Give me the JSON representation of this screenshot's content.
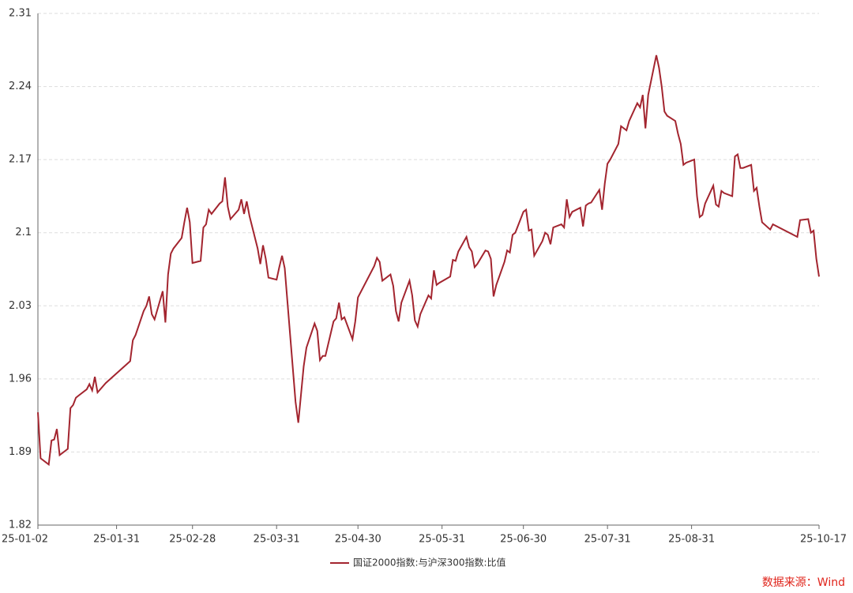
{
  "chart_data": {
    "type": "line",
    "x": [
      "25-01-02",
      "25-01-03",
      "25-01-06",
      "25-01-07",
      "25-01-08",
      "25-01-09",
      "25-01-10",
      "25-01-13",
      "25-01-14",
      "25-01-15",
      "25-01-16",
      "25-01-17",
      "25-01-20",
      "25-01-21",
      "25-01-22",
      "25-01-23",
      "25-01-24",
      "25-01-27",
      "25-02-05",
      "25-02-06",
      "25-02-07",
      "25-02-10",
      "25-02-11",
      "25-02-12",
      "25-02-13",
      "25-02-14",
      "25-02-17",
      "25-02-18",
      "25-02-19",
      "25-02-20",
      "25-02-21",
      "25-02-24",
      "25-02-25",
      "25-02-26",
      "25-02-27",
      "25-02-28",
      "25-03-03",
      "25-03-04",
      "25-03-05",
      "25-03-06",
      "25-03-07",
      "25-03-10",
      "25-03-11",
      "25-03-12",
      "25-03-13",
      "25-03-14",
      "25-03-17",
      "25-03-18",
      "25-03-19",
      "25-03-20",
      "25-03-21",
      "25-03-24",
      "25-03-25",
      "25-03-26",
      "25-03-27",
      "25-03-28",
      "25-03-31",
      "25-04-01",
      "25-04-02",
      "25-04-03",
      "25-04-07",
      "25-04-08",
      "25-04-09",
      "25-04-10",
      "25-04-11",
      "25-04-14",
      "25-04-15",
      "25-04-16",
      "25-04-17",
      "25-04-18",
      "25-04-21",
      "25-04-22",
      "25-04-23",
      "25-04-24",
      "25-04-25",
      "25-04-28",
      "25-04-29",
      "25-04-30",
      "25-05-06",
      "25-05-07",
      "25-05-08",
      "25-05-09",
      "25-05-12",
      "25-05-13",
      "25-05-14",
      "25-05-15",
      "25-05-16",
      "25-05-19",
      "25-05-20",
      "25-05-21",
      "25-05-22",
      "25-05-23",
      "25-05-26",
      "25-05-27",
      "25-05-28",
      "25-05-29",
      "25-05-30",
      "25-06-03",
      "25-06-04",
      "25-06-05",
      "25-06-06",
      "25-06-09",
      "25-06-10",
      "25-06-11",
      "25-06-12",
      "25-06-13",
      "25-06-16",
      "25-06-17",
      "25-06-18",
      "25-06-19",
      "25-06-20",
      "25-06-23",
      "25-06-24",
      "25-06-25",
      "25-06-26",
      "25-06-27",
      "25-06-30",
      "25-07-01",
      "25-07-02",
      "25-07-03",
      "25-07-04",
      "25-07-07",
      "25-07-08",
      "25-07-09",
      "25-07-10",
      "25-07-11",
      "25-07-14",
      "25-07-15",
      "25-07-16",
      "25-07-17",
      "25-07-18",
      "25-07-21",
      "25-07-22",
      "25-07-23",
      "25-07-24",
      "25-07-25",
      "25-07-28",
      "25-07-29",
      "25-07-30",
      "25-07-31",
      "25-08-01",
      "25-08-04",
      "25-08-05",
      "25-08-06",
      "25-08-07",
      "25-08-08",
      "25-08-11",
      "25-08-12",
      "25-08-13",
      "25-08-14",
      "25-08-15",
      "25-08-18",
      "25-08-19",
      "25-08-20",
      "25-08-21",
      "25-08-22",
      "25-08-25",
      "25-08-26",
      "25-08-27",
      "25-08-28",
      "25-08-29",
      "25-09-01",
      "25-09-02",
      "25-09-03",
      "25-09-04",
      "25-09-05",
      "25-09-08",
      "25-09-09",
      "25-09-10",
      "25-09-11",
      "25-09-12",
      "25-09-15",
      "25-09-16",
      "25-09-17",
      "25-09-18",
      "25-09-19",
      "25-09-22",
      "25-09-23",
      "25-09-24",
      "25-09-25",
      "25-09-26",
      "25-09-29",
      "25-09-30",
      "25-10-09",
      "25-10-10",
      "25-10-13",
      "25-10-14",
      "25-10-15",
      "25-10-16",
      "25-10-17"
    ],
    "series": [
      {
        "name": "国证2000指数:与沪深300指数:比值",
        "color": "#a3252f",
        "values": [
          1.928,
          1.884,
          1.878,
          1.901,
          1.902,
          1.912,
          1.887,
          1.893,
          1.932,
          1.935,
          1.942,
          1.944,
          1.95,
          1.955,
          1.949,
          1.962,
          1.947,
          1.956,
          1.977,
          1.997,
          2.002,
          2.025,
          2.03,
          2.039,
          2.022,
          2.017,
          2.044,
          2.014,
          2.06,
          2.08,
          2.085,
          2.095,
          2.11,
          2.124,
          2.11,
          2.071,
          2.073,
          2.105,
          2.108,
          2.122,
          2.118,
          2.128,
          2.13,
          2.153,
          2.125,
          2.113,
          2.122,
          2.132,
          2.118,
          2.13,
          2.116,
          2.085,
          2.07,
          2.088,
          2.075,
          2.057,
          2.055,
          2.067,
          2.078,
          2.066,
          1.938,
          1.918,
          1.945,
          1.972,
          1.99,
          2.013,
          2.006,
          1.978,
          1.982,
          1.982,
          2.015,
          2.018,
          2.033,
          2.017,
          2.019,
          1.998,
          2.015,
          2.038,
          2.068,
          2.076,
          2.072,
          2.054,
          2.06,
          2.049,
          2.025,
          2.015,
          2.033,
          2.054,
          2.04,
          2.016,
          2.01,
          2.022,
          2.04,
          2.037,
          2.064,
          2.05,
          2.052,
          2.058,
          2.074,
          2.073,
          2.082,
          2.096,
          2.086,
          2.082,
          2.067,
          2.07,
          2.083,
          2.082,
          2.075,
          2.039,
          2.05,
          2.072,
          2.083,
          2.081,
          2.098,
          2.1,
          2.12,
          2.122,
          2.102,
          2.103,
          2.078,
          2.092,
          2.1,
          2.098,
          2.089,
          2.105,
          2.108,
          2.105,
          2.132,
          2.115,
          2.12,
          2.124,
          2.106,
          2.126,
          2.128,
          2.129,
          2.141,
          2.122,
          2.147,
          2.166,
          2.17,
          2.185,
          2.202,
          2.2,
          2.198,
          2.207,
          2.224,
          2.22,
          2.232,
          2.2,
          2.232,
          2.27,
          2.258,
          2.24,
          2.216,
          2.212,
          2.207,
          2.195,
          2.185,
          2.165,
          2.167,
          2.17,
          2.135,
          2.115,
          2.117,
          2.128,
          2.145,
          2.127,
          2.125,
          2.14,
          2.138,
          2.135,
          2.173,
          2.175,
          2.162,
          2.162,
          2.165,
          2.14,
          2.143,
          2.125,
          2.11,
          2.103,
          2.108,
          2.096,
          2.112,
          2.113,
          2.1,
          2.102,
          2.075,
          2.058
        ]
      }
    ],
    "ylim": [
      1.82,
      2.31
    ],
    "yticks": [
      1.82,
      1.89,
      1.96,
      2.03,
      2.1,
      2.17,
      2.24,
      2.31
    ],
    "xticks": [
      "25-01-02",
      "25-01-31",
      "25-02-28",
      "25-03-31",
      "25-04-30",
      "25-05-31",
      "25-06-30",
      "25-07-31",
      "25-08-31",
      "25-10-17"
    ],
    "grid": true,
    "legend": "bottom",
    "source": "数据来源：Wind"
  }
}
